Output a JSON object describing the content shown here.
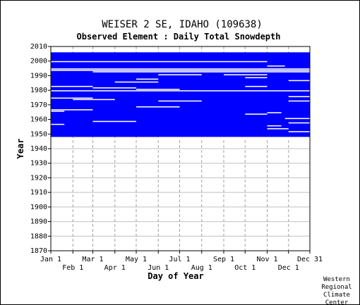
{
  "chart_data": {
    "type": "heatmap",
    "title": "WEISER 2 SE, IDAHO   (109638)",
    "subtitle": "Observed Element : Daily Total Snowdepth",
    "xlabel": "Day of Year",
    "ylabel": "Year",
    "ylim": [
      1870,
      2010
    ],
    "xlim": [
      1,
      365
    ],
    "yticks": [
      1870,
      1880,
      1890,
      1900,
      1910,
      1920,
      1930,
      1940,
      1950,
      1960,
      1970,
      1980,
      1990,
      2000,
      2010
    ],
    "xticks_upper": [
      {
        "label": "Jan 1",
        "day": 1
      },
      {
        "label": "Mar 1",
        "day": 60
      },
      {
        "label": "May 1",
        "day": 121
      },
      {
        "label": "Jul 1",
        "day": 182
      },
      {
        "label": "Sep 1",
        "day": 244
      },
      {
        "label": "Nov 1",
        "day": 305
      },
      {
        "label": "Dec 31",
        "day": 365
      }
    ],
    "xticks_lower": [
      {
        "label": "Feb 1",
        "day": 32
      },
      {
        "label": "Apr 1",
        "day": 91
      },
      {
        "label": "Jun 1",
        "day": 152
      },
      {
        "label": "Aug 1",
        "day": 213
      },
      {
        "label": "Oct 1",
        "day": 274
      },
      {
        "label": "Dec 1",
        "day": 335
      }
    ],
    "grid": true,
    "data_color": "#0000ff",
    "missing_color": "#ffffff",
    "coverage_note_years": [
      1948,
      2005
    ],
    "blocks": [
      {
        "year_start": 1948,
        "year_end": 2005,
        "day_start": 1,
        "day_end": 365
      }
    ],
    "gaps": [
      {
        "year": 1993,
        "day_start": 1,
        "day_end": 365
      },
      {
        "year": 1994,
        "day_start": 1,
        "day_end": 365
      },
      {
        "year": 1979,
        "day_start": 1,
        "day_end": 365
      },
      {
        "year": 1999,
        "day_start": 1,
        "day_end": 305
      },
      {
        "year": 1992,
        "day_start": 60,
        "day_end": 365
      },
      {
        "year": 1982,
        "day_start": 1,
        "day_end": 60
      },
      {
        "year": 1981,
        "day_start": 60,
        "day_end": 121
      },
      {
        "year": 1966,
        "day_start": 1,
        "day_end": 60
      },
      {
        "year": 1965,
        "day_start": 1,
        "day_end": 20
      },
      {
        "year": 1974,
        "day_start": 1,
        "day_end": 60
      },
      {
        "year": 1973,
        "day_start": 32,
        "day_end": 91
      },
      {
        "year": 1956,
        "day_start": 1,
        "day_end": 20
      },
      {
        "year": 1958,
        "day_start": 60,
        "day_end": 121
      },
      {
        "year": 1985,
        "day_start": 91,
        "day_end": 152
      },
      {
        "year": 1987,
        "day_start": 121,
        "day_end": 152
      },
      {
        "year": 1980,
        "day_start": 121,
        "day_end": 182
      },
      {
        "year": 1972,
        "day_start": 152,
        "day_end": 213
      },
      {
        "year": 1968,
        "day_start": 121,
        "day_end": 182
      },
      {
        "year": 1990,
        "day_start": 152,
        "day_end": 213
      },
      {
        "year": 1990,
        "day_start": 244,
        "day_end": 305
      },
      {
        "year": 1988,
        "day_start": 274,
        "day_end": 305
      },
      {
        "year": 1982,
        "day_start": 274,
        "day_end": 305
      },
      {
        "year": 1963,
        "day_start": 274,
        "day_end": 305
      },
      {
        "year": 1947,
        "day_start": 152,
        "day_end": 365
      },
      {
        "year": 1996,
        "day_start": 305,
        "day_end": 330
      },
      {
        "year": 1986,
        "day_start": 335,
        "day_end": 365
      },
      {
        "year": 1975,
        "day_start": 335,
        "day_end": 365
      },
      {
        "year": 1972,
        "day_start": 335,
        "day_end": 365
      },
      {
        "year": 1964,
        "day_start": 305,
        "day_end": 325
      },
      {
        "year": 1955,
        "day_start": 305,
        "day_end": 325
      },
      {
        "year": 1953,
        "day_start": 305,
        "day_end": 335
      },
      {
        "year": 1957,
        "day_start": 335,
        "day_end": 365
      },
      {
        "year": 1951,
        "day_start": 335,
        "day_end": 365
      },
      {
        "year": 1960,
        "day_start": 330,
        "day_end": 365
      }
    ]
  },
  "credit": [
    "Western",
    "Regional",
    "Climate",
    "Center"
  ]
}
